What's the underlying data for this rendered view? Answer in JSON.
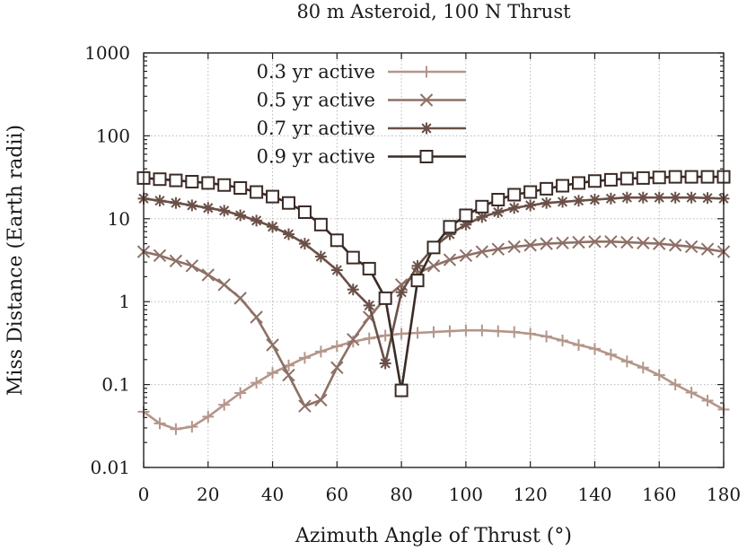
{
  "chart_data": {
    "type": "line",
    "title": "80 m Asteroid, 100 N Thrust",
    "xlabel": "Azimuth Angle of Thrust (°)",
    "ylabel": "Miss Distance (Earth radii)",
    "xlim": [
      0,
      180
    ],
    "ylim": [
      0.01,
      1000
    ],
    "yscale": "log",
    "grid": true,
    "legend_position": "top-left",
    "x_ticks": [
      0,
      20,
      40,
      60,
      80,
      100,
      120,
      140,
      160,
      180
    ],
    "x_tick_labels": [
      "0",
      "20",
      "40",
      "60",
      "80",
      "100",
      "120",
      "140",
      "160",
      "180"
    ],
    "y_ticks": [
      0.01,
      0.1,
      1,
      10,
      100,
      1000
    ],
    "y_tick_labels": [
      "0.01",
      "0.1",
      "1",
      "10",
      "100",
      "1000"
    ],
    "x": [
      0,
      5,
      10,
      15,
      20,
      25,
      30,
      35,
      40,
      45,
      50,
      55,
      60,
      65,
      70,
      75,
      80,
      85,
      90,
      95,
      100,
      105,
      110,
      115,
      120,
      125,
      130,
      135,
      140,
      145,
      150,
      155,
      160,
      165,
      170,
      175,
      180
    ],
    "series": [
      {
        "name": "0.3 yr active",
        "color": "#b4968a",
        "marker": "plus",
        "values": [
          0.047,
          0.034,
          0.029,
          0.031,
          0.041,
          0.057,
          0.079,
          0.105,
          0.138,
          0.17,
          0.21,
          0.25,
          0.29,
          0.33,
          0.36,
          0.39,
          0.41,
          0.42,
          0.43,
          0.44,
          0.45,
          0.45,
          0.44,
          0.43,
          0.41,
          0.38,
          0.34,
          0.3,
          0.27,
          0.23,
          0.19,
          0.16,
          0.13,
          0.1,
          0.08,
          0.064,
          0.05
        ]
      },
      {
        "name": "0.5 yr active",
        "color": "#8e7066",
        "marker": "cross",
        "values": [
          4.0,
          3.6,
          3.1,
          2.7,
          2.1,
          1.6,
          1.1,
          0.65,
          0.3,
          0.13,
          0.055,
          0.065,
          0.16,
          0.35,
          0.65,
          1.1,
          1.6,
          2.2,
          2.7,
          3.2,
          3.6,
          4.0,
          4.3,
          4.6,
          4.8,
          5.0,
          5.1,
          5.2,
          5.3,
          5.3,
          5.2,
          5.1,
          5.0,
          4.8,
          4.6,
          4.3,
          4.0
        ]
      },
      {
        "name": "0.7 yr active",
        "color": "#6a5047",
        "marker": "star",
        "values": [
          17.5,
          16.5,
          15.5,
          14.5,
          13.5,
          12.5,
          11.0,
          9.5,
          8.0,
          6.5,
          5.0,
          3.5,
          2.4,
          1.4,
          0.9,
          0.18,
          1.3,
          2.7,
          4.5,
          6.5,
          8.5,
          10.5,
          12.0,
          13.5,
          14.5,
          15.5,
          16.0,
          16.5,
          17.0,
          17.5,
          18.0,
          18.0,
          18.0,
          18.0,
          18.0,
          17.8,
          17.5
        ]
      },
      {
        "name": "0.9 yr active",
        "color": "#3a2b26",
        "marker": "square",
        "values": [
          31,
          30,
          29,
          28,
          27,
          25.5,
          23.5,
          21,
          18.5,
          15.5,
          12,
          8.5,
          5.5,
          3.4,
          2.5,
          1.1,
          0.085,
          1.8,
          4.5,
          8.0,
          11,
          14,
          17,
          19.5,
          21,
          23,
          25,
          27,
          28.5,
          29.5,
          30.5,
          31,
          31.5,
          32,
          32,
          32,
          32
        ]
      }
    ]
  }
}
